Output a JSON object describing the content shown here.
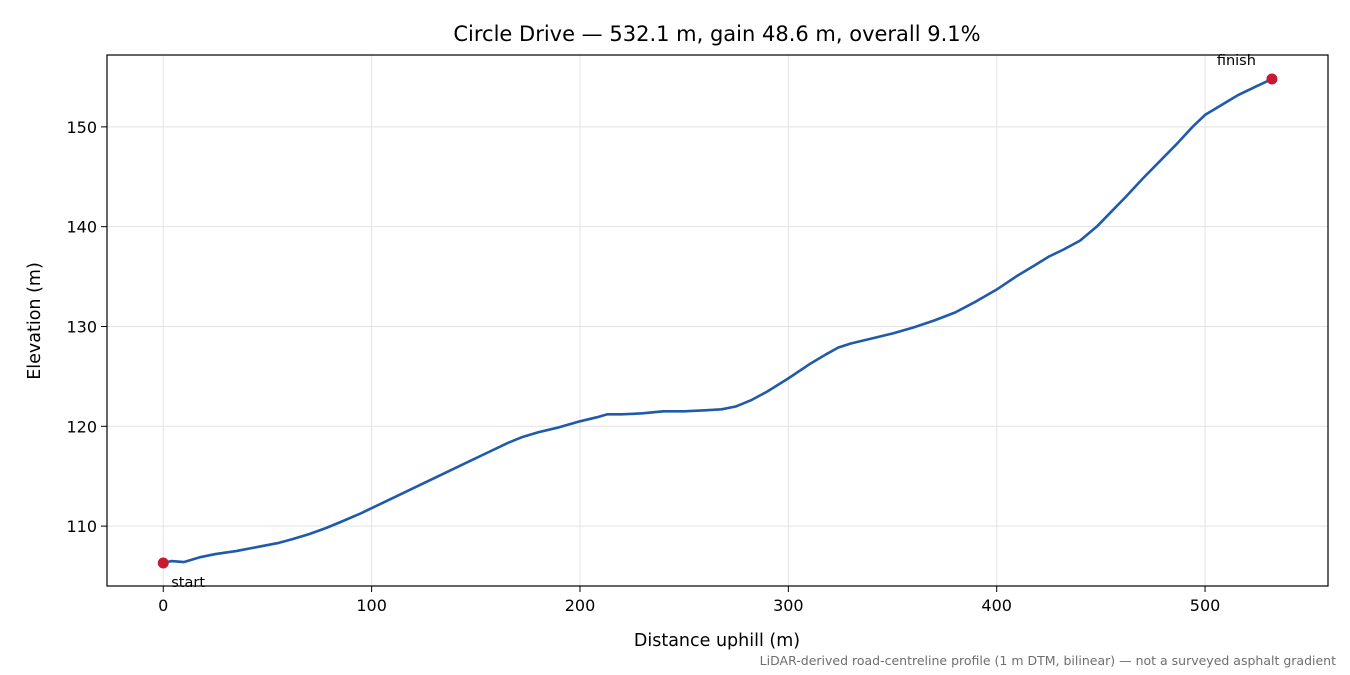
{
  "chart_data": {
    "type": "line",
    "title": "Circle Drive — 532.1 m, gain 48.6 m, overall 9.1%",
    "xlabel": "Distance uphill (m)",
    "ylabel": "Elevation (m)",
    "xlim": [
      -27,
      559
    ],
    "ylim": [
      104,
      157.2
    ],
    "x_ticks": [
      0,
      100,
      200,
      300,
      400,
      500
    ],
    "y_ticks": [
      110,
      120,
      130,
      140,
      150
    ],
    "grid": true,
    "line_color": "#1f5aab",
    "marker_color": "#c8192e",
    "series": [
      {
        "x": [
          0,
          4,
          10,
          18,
          25,
          35,
          45,
          55,
          62,
          70,
          78,
          85,
          95,
          105,
          115,
          125,
          135,
          145,
          155,
          165,
          172,
          180,
          190,
          200,
          208,
          213,
          220,
          230,
          240,
          250,
          260,
          268,
          275,
          282,
          290,
          300,
          310,
          318,
          324,
          330,
          340,
          350,
          360,
          370,
          380,
          390,
          400,
          410,
          418,
          425,
          432,
          440,
          448,
          455,
          462,
          470,
          478,
          486,
          494,
          500,
          508,
          516,
          524,
          532.1
        ],
        "y": [
          106.3,
          106.5,
          106.4,
          106.9,
          107.2,
          107.5,
          107.9,
          108.3,
          108.7,
          109.2,
          109.8,
          110.4,
          111.3,
          112.3,
          113.3,
          114.3,
          115.3,
          116.3,
          117.3,
          118.3,
          118.9,
          119.4,
          119.9,
          120.5,
          120.9,
          121.2,
          121.2,
          121.3,
          121.5,
          121.5,
          121.6,
          121.7,
          122.0,
          122.6,
          123.5,
          124.8,
          126.2,
          127.2,
          127.9,
          128.3,
          128.8,
          129.3,
          129.9,
          130.6,
          131.4,
          132.5,
          133.7,
          135.1,
          136.1,
          137.0,
          137.7,
          138.6,
          140.0,
          141.5,
          143.0,
          144.8,
          146.5,
          148.2,
          150.0,
          151.2,
          152.2,
          153.2,
          154.0,
          154.8
        ]
      }
    ],
    "markers": [
      {
        "x": 0,
        "y": 106.3,
        "label": "start"
      },
      {
        "x": 532.1,
        "y": 154.8,
        "label": "finish"
      }
    ],
    "footnote": "LiDAR-derived road-centreline profile (1 m DTM, bilinear) — not a surveyed asphalt gradient"
  }
}
